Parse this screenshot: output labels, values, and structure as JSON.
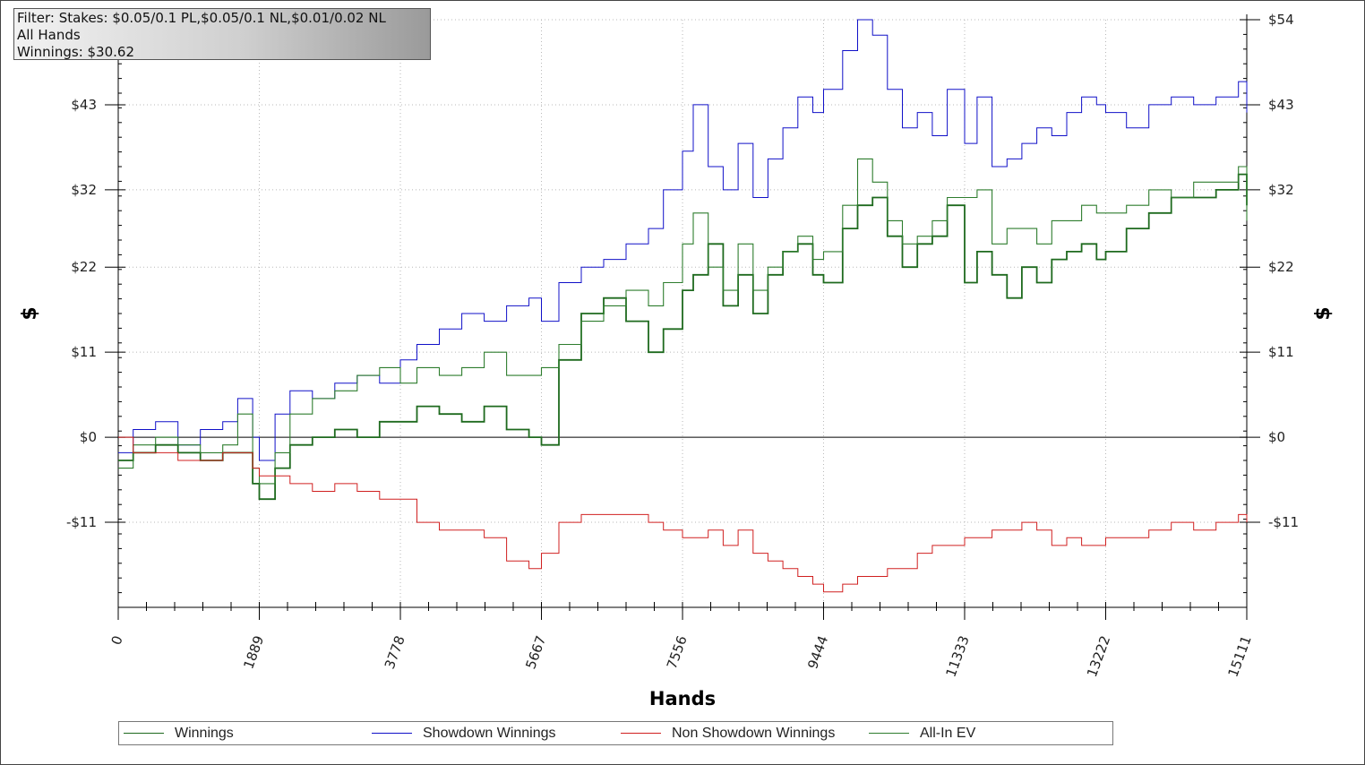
{
  "info": {
    "filter": "Filter: Stakes: $0.05/0.1 PL,$0.05/0.1 NL,$0.01/0.02 NL",
    "hands": "All Hands",
    "winnings": "Winnings: $30.62"
  },
  "legend": {
    "items": [
      {
        "label": "Winnings",
        "color": "#1e6a1e"
      },
      {
        "label": "Showdown Winnings",
        "color": "#1010c8"
      },
      {
        "label": "Non Showdown Winnings",
        "color": "#d02020"
      },
      {
        "label": "All-In EV",
        "color": "#2e7d2e"
      }
    ]
  },
  "chart_data": {
    "type": "line",
    "xlabel": "Hands",
    "ylabel": "$",
    "xlim": [
      0,
      15111
    ],
    "ylim": [
      -22,
      54
    ],
    "x_ticks": [
      "0",
      "1889",
      "3778",
      "5667",
      "7556",
      "9444",
      "11333",
      "13222",
      "15111"
    ],
    "y_ticks": [
      {
        "value": -11,
        "label": "-$11"
      },
      {
        "value": 0,
        "label": "$0"
      },
      {
        "value": 11,
        "label": "$11"
      },
      {
        "value": 22,
        "label": "$22"
      },
      {
        "value": 32,
        "label": "$32"
      },
      {
        "value": 43,
        "label": "$43"
      },
      {
        "value": 54,
        "label": "$54"
      }
    ],
    "y_ticks_right": [
      {
        "value": -11,
        "label": "-$11"
      },
      {
        "value": 0,
        "label": "$0"
      },
      {
        "value": 11,
        "label": "$11"
      },
      {
        "value": 22,
        "label": "$22"
      },
      {
        "value": 32,
        "label": "$32"
      },
      {
        "value": 43,
        "label": "$43"
      },
      {
        "value": 54,
        "label": "$54"
      }
    ],
    "grid": true,
    "series": [
      {
        "name": "Showdown Winnings",
        "color": "#1010c8",
        "x": [
          0,
          200,
          500,
          800,
          1100,
          1400,
          1600,
          1800,
          1889,
          2100,
          2300,
          2600,
          2900,
          3200,
          3500,
          3778,
          4000,
          4300,
          4600,
          4900,
          5200,
          5500,
          5667,
          5900,
          6200,
          6500,
          6800,
          7100,
          7300,
          7556,
          7700,
          7900,
          8100,
          8300,
          8500,
          8700,
          8900,
          9100,
          9300,
          9444,
          9700,
          9900,
          10100,
          10300,
          10500,
          10700,
          10900,
          11100,
          11333,
          11500,
          11700,
          11900,
          12100,
          12300,
          12500,
          12700,
          12900,
          13100,
          13222,
          13500,
          13800,
          14100,
          14400,
          14700,
          15000,
          15111
        ],
        "values": [
          -2,
          1,
          2,
          -1,
          1,
          2,
          5,
          0,
          -3,
          3,
          6,
          5,
          7,
          8,
          7,
          10,
          12,
          14,
          16,
          15,
          17,
          18,
          15,
          20,
          22,
          23,
          25,
          27,
          32,
          37,
          43,
          35,
          32,
          38,
          31,
          36,
          40,
          44,
          42,
          45,
          50,
          54,
          52,
          45,
          40,
          42,
          39,
          45,
          38,
          44,
          35,
          36,
          38,
          40,
          39,
          42,
          44,
          43,
          42,
          40,
          43,
          44,
          43,
          44,
          46,
          42
        ]
      },
      {
        "name": "Winnings",
        "color": "#1e6a1e",
        "x": [
          0,
          200,
          500,
          800,
          1100,
          1400,
          1600,
          1800,
          1889,
          2100,
          2300,
          2600,
          2900,
          3200,
          3500,
          3778,
          4000,
          4300,
          4600,
          4900,
          5200,
          5500,
          5667,
          5900,
          6200,
          6500,
          6800,
          7100,
          7300,
          7556,
          7700,
          7900,
          8100,
          8300,
          8500,
          8700,
          8900,
          9100,
          9300,
          9444,
          9700,
          9900,
          10100,
          10300,
          10500,
          10700,
          10900,
          11100,
          11333,
          11500,
          11700,
          11900,
          12100,
          12300,
          12500,
          12700,
          12900,
          13100,
          13222,
          13500,
          13800,
          14100,
          14400,
          14700,
          15000,
          15111
        ],
        "values": [
          -3,
          -2,
          -1,
          -2,
          -3,
          -2,
          -2,
          -6,
          -8,
          -4,
          -1,
          0,
          1,
          0,
          2,
          2,
          4,
          3,
          2,
          4,
          1,
          0,
          -1,
          10,
          16,
          18,
          15,
          11,
          14,
          19,
          21,
          25,
          17,
          21,
          16,
          21,
          24,
          25,
          21,
          20,
          27,
          30,
          31,
          26,
          22,
          25,
          26,
          30,
          20,
          24,
          21,
          18,
          22,
          20,
          23,
          24,
          25,
          23,
          24,
          27,
          29,
          31,
          31,
          32,
          34,
          30
        ]
      },
      {
        "name": "All-In EV",
        "color": "#2e7d2e",
        "x": [
          0,
          200,
          500,
          800,
          1100,
          1400,
          1600,
          1800,
          1889,
          2100,
          2300,
          2600,
          2900,
          3200,
          3500,
          3778,
          4000,
          4300,
          4600,
          4900,
          5200,
          5500,
          5667,
          5900,
          6200,
          6500,
          6800,
          7100,
          7300,
          7556,
          7700,
          7900,
          8100,
          8300,
          8500,
          8700,
          8900,
          9100,
          9300,
          9444,
          9700,
          9900,
          10100,
          10300,
          10500,
          10700,
          10900,
          11100,
          11333,
          11500,
          11700,
          11900,
          12100,
          12300,
          12500,
          12700,
          12900,
          13100,
          13222,
          13500,
          13800,
          14100,
          14400,
          14700,
          15000,
          15111
        ],
        "values": [
          -4,
          -1,
          0,
          -1,
          -2,
          -1,
          3,
          -4,
          -6,
          -2,
          3,
          5,
          6,
          8,
          9,
          7,
          9,
          8,
          9,
          11,
          8,
          8,
          9,
          12,
          15,
          17,
          19,
          17,
          20,
          25,
          29,
          22,
          19,
          25,
          19,
          22,
          24,
          26,
          23,
          24,
          30,
          36,
          33,
          28,
          25,
          26,
          28,
          31,
          31,
          32,
          25,
          27,
          27,
          25,
          28,
          28,
          30,
          29,
          29,
          30,
          32,
          31,
          33,
          33,
          35,
          28
        ]
      },
      {
        "name": "Non Showdown Winnings",
        "color": "#d02020",
        "x": [
          0,
          200,
          500,
          800,
          1100,
          1400,
          1600,
          1800,
          1889,
          2100,
          2300,
          2600,
          2900,
          3200,
          3500,
          3778,
          4000,
          4300,
          4600,
          4900,
          5200,
          5500,
          5667,
          5900,
          6200,
          6500,
          6800,
          7100,
          7300,
          7556,
          7700,
          7900,
          8100,
          8300,
          8500,
          8700,
          8900,
          9100,
          9300,
          9444,
          9700,
          9900,
          10100,
          10300,
          10500,
          10700,
          10900,
          11100,
          11333,
          11500,
          11700,
          11900,
          12100,
          12300,
          12500,
          12700,
          12900,
          13100,
          13222,
          13500,
          13800,
          14100,
          14400,
          14700,
          15000,
          15111
        ],
        "values": [
          0,
          -2,
          -2,
          -3,
          -3,
          -2,
          -2,
          -4,
          -5,
          -5,
          -6,
          -7,
          -6,
          -7,
          -8,
          -8,
          -11,
          -12,
          -12,
          -13,
          -16,
          -17,
          -15,
          -11,
          -10,
          -10,
          -10,
          -11,
          -12,
          -13,
          -13,
          -12,
          -14,
          -12,
          -15,
          -16,
          -17,
          -18,
          -19,
          -20,
          -19,
          -18,
          -18,
          -17,
          -17,
          -15,
          -14,
          -14,
          -13,
          -13,
          -12,
          -12,
          -11,
          -12,
          -14,
          -13,
          -14,
          -14,
          -13,
          -13,
          -12,
          -11,
          -12,
          -11,
          -10,
          -11
        ]
      }
    ]
  }
}
